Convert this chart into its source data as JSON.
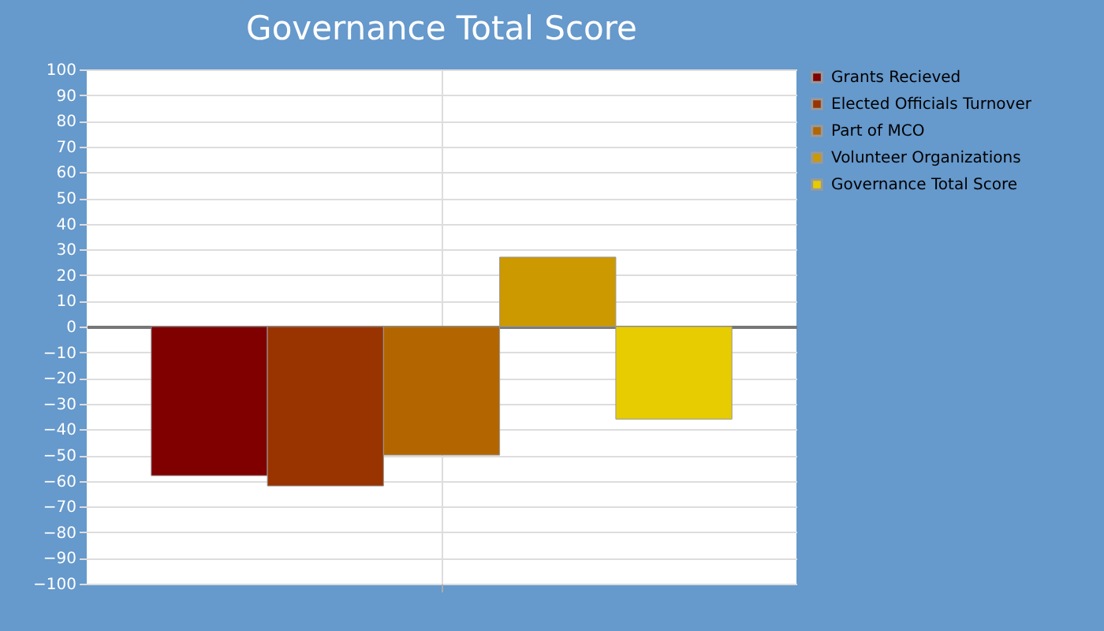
{
  "chart_data": {
    "type": "bar",
    "title": "Governance Total Score",
    "categories": [
      null
    ],
    "series": [
      {
        "name": "Grants Recieved",
        "color": "#800000",
        "values": [
          -58
        ]
      },
      {
        "name": "Elected Officials Turnover",
        "color": "#993300",
        "values": [
          -62
        ]
      },
      {
        "name": "Part of MCO",
        "color": "#b36600",
        "values": [
          -50
        ]
      },
      {
        "name": "Volunteer Organizations",
        "color": "#cc9900",
        "values": [
          27
        ]
      },
      {
        "name": "Governance Total Score",
        "color": "#e6cc00",
        "values": [
          -36
        ]
      }
    ],
    "ylim": [
      -100,
      100
    ],
    "yticks": [
      -100,
      -90,
      -80,
      -70,
      -60,
      -50,
      -40,
      -30,
      -20,
      -10,
      0,
      10,
      20,
      30,
      40,
      50,
      60,
      70,
      80,
      90,
      100
    ],
    "grid": true,
    "legend": "right"
  }
}
